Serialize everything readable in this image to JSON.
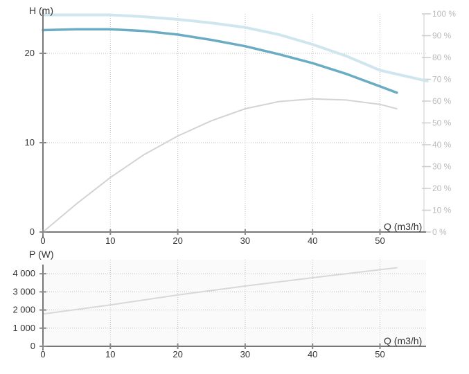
{
  "chart_data": [
    {
      "type": "line",
      "ylabel": "H (m)",
      "xlabel": "Q (m3/h)",
      "xlim": [
        0,
        57
      ],
      "ylim": [
        0,
        25
      ],
      "x_ticks": [
        "0",
        "10",
        "20",
        "30",
        "40",
        "50"
      ],
      "y_ticks": [
        "0",
        "10",
        "20"
      ],
      "y2lim": [
        0,
        100
      ],
      "y2_ticks": [
        "0 %",
        "10 %",
        "20 %",
        "30 %",
        "40 %",
        "50 %",
        "60 %",
        "70 %",
        "80 %",
        "90 %",
        "100 %"
      ],
      "grid": true,
      "series": [
        {
          "color": "#6aacc4",
          "style": "solid",
          "axis": "left",
          "x": [
            0,
            5,
            10,
            15,
            20,
            25,
            30,
            35,
            40,
            45,
            50,
            52.5
          ],
          "y": [
            22.6,
            22.7,
            22.7,
            22.5,
            22.1,
            21.5,
            20.8,
            19.9,
            18.9,
            17.7,
            16.3,
            15.6
          ]
        },
        {
          "color": "#cfe6ef",
          "style": "dashed",
          "axis": "left",
          "x": [
            0,
            5,
            10,
            15,
            20,
            25,
            30,
            35,
            40,
            45,
            50,
            57
          ],
          "y": [
            24.3,
            24.3,
            24.3,
            24.1,
            23.8,
            23.4,
            22.9,
            22.1,
            21.0,
            19.7,
            18.1,
            16.9
          ]
        },
        {
          "color": "#d3d3d3",
          "style": "solid",
          "axis": "right",
          "x": [
            0,
            5,
            10,
            15,
            20,
            25,
            30,
            35,
            40,
            45,
            50,
            52.5
          ],
          "y": [
            0,
            13,
            25,
            35.5,
            44,
            51,
            56.5,
            59.8,
            61,
            60.5,
            58.5,
            56.5
          ]
        }
      ]
    },
    {
      "type": "line",
      "ylabel": "P (W)",
      "xlabel": "Q (m3/h)",
      "xlim": [
        0,
        57
      ],
      "ylim": [
        0,
        4500
      ],
      "x_ticks": [
        "0",
        "10",
        "20",
        "30",
        "40",
        "50"
      ],
      "y_ticks": [
        "0",
        "1 000",
        "2 000",
        "3 000",
        "4 000"
      ],
      "grid": true,
      "series": [
        {
          "color": "#d8d8d8",
          "style": "solid",
          "x": [
            0,
            10,
            20,
            30,
            40,
            50,
            52.5
          ],
          "y": [
            1780,
            2280,
            2830,
            3320,
            3780,
            4220,
            4330
          ]
        }
      ]
    }
  ]
}
